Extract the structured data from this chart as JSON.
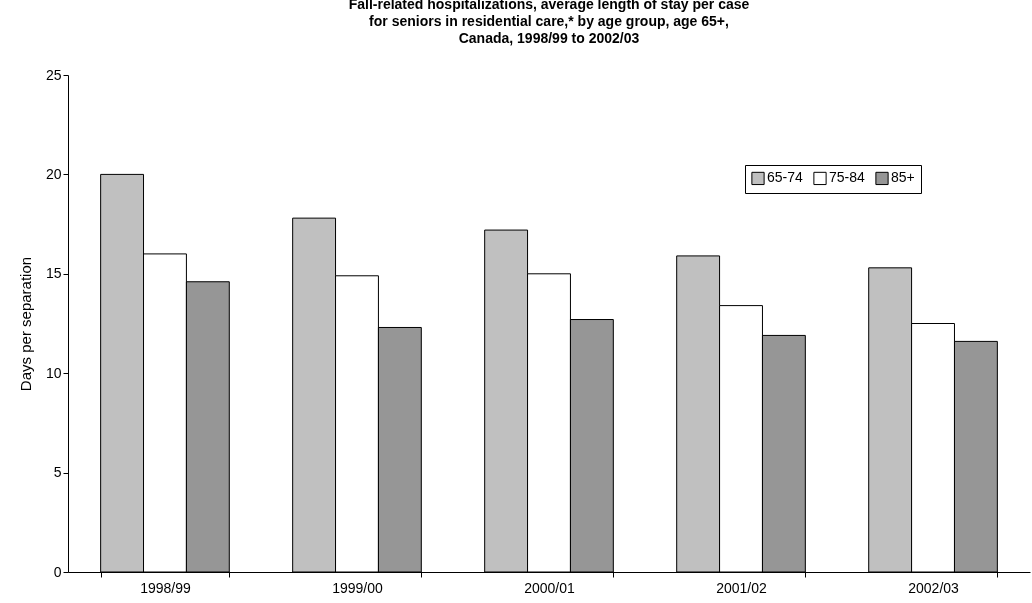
{
  "chart_data": {
    "type": "bar",
    "title": "Fall-related hospitalizations, average length of stay per case\nfor seniors in residential care,* by age group, age 65+,\nCanada, 1998/99 to 2002/03",
    "ylabel": "Days per separation",
    "categories": [
      "1998/99",
      "1999/00",
      "2000/01",
      "2001/02",
      "2002/03"
    ],
    "series": [
      {
        "name": "65-74",
        "color": "#c0c0c0",
        "values": [
          20.0,
          17.8,
          17.2,
          15.9,
          15.3
        ]
      },
      {
        "name": "75-84",
        "color": "#ffffff",
        "values": [
          16.0,
          14.9,
          15.0,
          13.4,
          12.5
        ]
      },
      {
        "name": "85+",
        "color": "#969696",
        "values": [
          14.6,
          12.3,
          12.7,
          11.9,
          11.6
        ]
      }
    ],
    "ylim": [
      0,
      25
    ],
    "yticks": [
      0,
      5,
      10,
      15,
      20,
      25
    ],
    "legend": "top right"
  }
}
